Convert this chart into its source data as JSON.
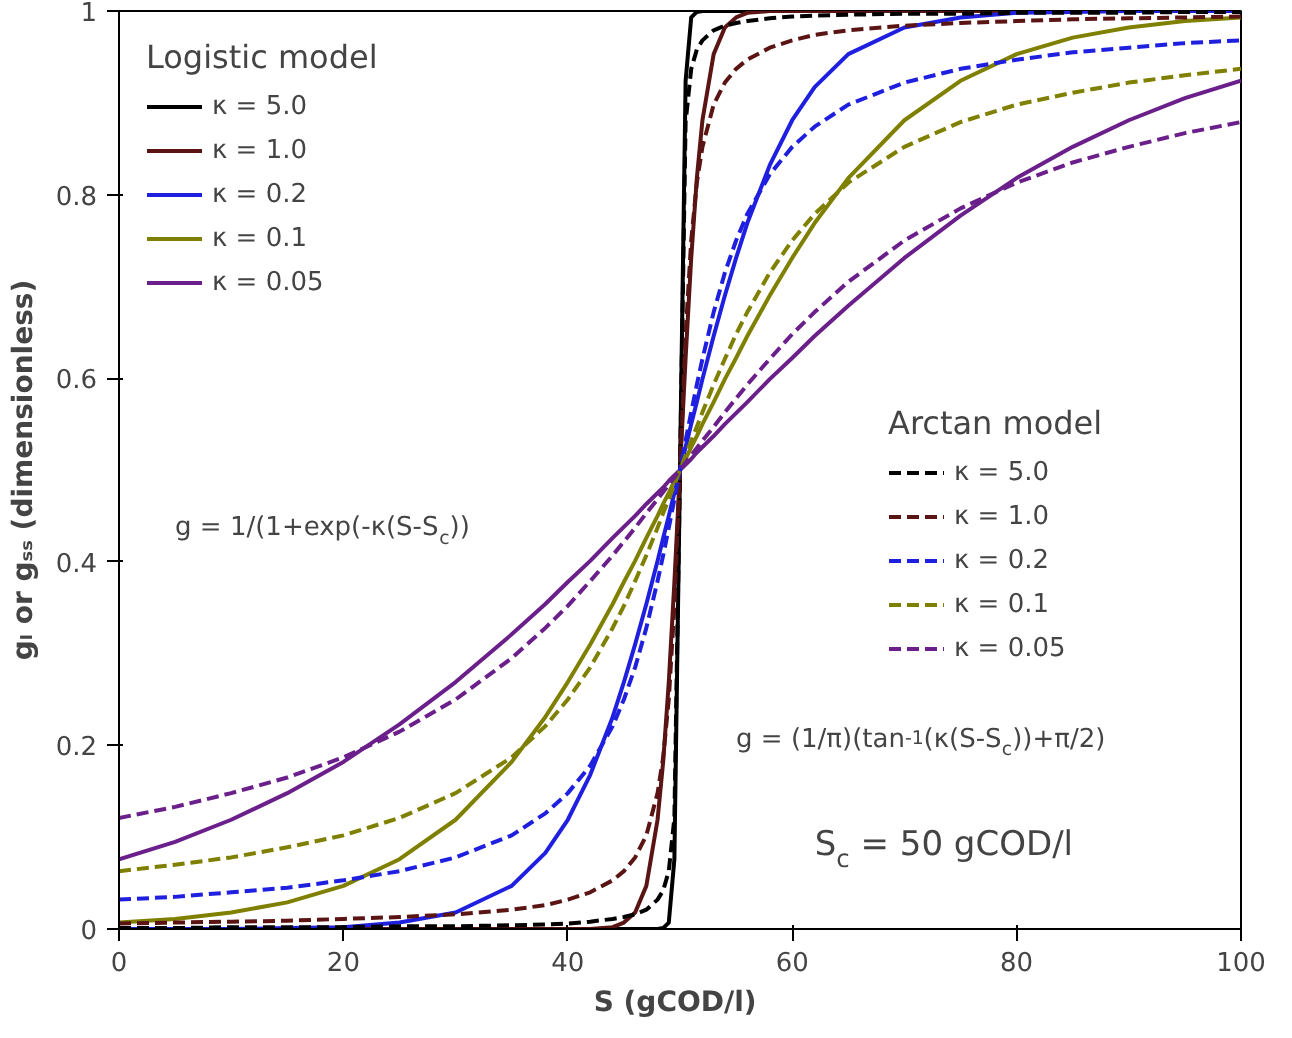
{
  "chart_data": {
    "type": "line",
    "xlabel": "S  (gCOD/l)",
    "ylabel": "gₗ or gₛₛ (dimensionless)",
    "legend_title": "Logistic model",
    "legend": "top left",
    "grid": false,
    "marker": "none",
    "x": [
      0,
      5,
      10,
      15,
      20,
      25,
      30,
      35,
      38,
      40,
      42,
      44,
      45,
      46,
      47,
      48,
      48.5,
      49,
      49.5,
      50,
      50.5,
      51,
      51.5,
      52,
      53,
      54,
      55,
      56,
      58,
      60,
      62,
      65,
      70,
      75,
      80,
      85,
      90,
      95,
      100
    ],
    "xlim": [
      0,
      100
    ],
    "xticks": [
      0,
      20,
      40,
      60,
      80,
      100
    ],
    "ylim": [
      0,
      1
    ],
    "yticks": [
      0,
      0.2,
      0.4,
      0.6,
      0.8,
      1
    ],
    "series": [
      {
        "name": "κ = 5.0",
        "color": "#000000",
        "line_style": "solid",
        "values": [
          0,
          0,
          0,
          0,
          0,
          0,
          0,
          0,
          0,
          0,
          0,
          0,
          0,
          0,
          0,
          0,
          0.001,
          0.007,
          0.076,
          0.5,
          0.924,
          0.993,
          0.999,
          1,
          1,
          1,
          1,
          1,
          1,
          1,
          1,
          1,
          1,
          1,
          1,
          1,
          1,
          1,
          1
        ]
      },
      {
        "name": "κ = 1.0",
        "color": "#5a1414",
        "line_style": "solid",
        "values": [
          0,
          0,
          0,
          0,
          0,
          0,
          0,
          0,
          0,
          0,
          0,
          0.002,
          0.007,
          0.018,
          0.047,
          0.119,
          0.182,
          0.269,
          0.378,
          0.5,
          0.622,
          0.731,
          0.818,
          0.881,
          0.953,
          0.982,
          0.993,
          0.998,
          1,
          1,
          1,
          1,
          1,
          1,
          1,
          1,
          1,
          1,
          1
        ]
      },
      {
        "name": "κ = 0.2",
        "color": "#1f1fe0",
        "line_style": "solid",
        "values": [
          0,
          0,
          0,
          0.001,
          0.002,
          0.007,
          0.018,
          0.047,
          0.083,
          0.119,
          0.168,
          0.231,
          0.269,
          0.31,
          0.354,
          0.401,
          0.426,
          0.45,
          0.475,
          0.5,
          0.525,
          0.55,
          0.574,
          0.599,
          0.646,
          0.69,
          0.731,
          0.769,
          0.832,
          0.881,
          0.917,
          0.953,
          0.982,
          0.993,
          0.998,
          0.999,
          1,
          1,
          1
        ]
      },
      {
        "name": "κ = 0.1",
        "color": "#7f7f00",
        "line_style": "solid",
        "values": [
          0.007,
          0.011,
          0.018,
          0.029,
          0.047,
          0.076,
          0.119,
          0.182,
          0.231,
          0.269,
          0.31,
          0.354,
          0.378,
          0.401,
          0.426,
          0.45,
          0.463,
          0.475,
          0.488,
          0.5,
          0.512,
          0.525,
          0.537,
          0.55,
          0.574,
          0.599,
          0.622,
          0.646,
          0.69,
          0.731,
          0.769,
          0.818,
          0.881,
          0.924,
          0.953,
          0.971,
          0.982,
          0.989,
          0.993
        ]
      },
      {
        "name": "κ = 0.05",
        "color": "#6a1f8a",
        "line_style": "solid",
        "values": [
          0.076,
          0.095,
          0.119,
          0.148,
          0.182,
          0.223,
          0.269,
          0.321,
          0.354,
          0.378,
          0.401,
          0.426,
          0.438,
          0.45,
          0.463,
          0.475,
          0.481,
          0.488,
          0.494,
          0.5,
          0.506,
          0.512,
          0.519,
          0.525,
          0.537,
          0.55,
          0.562,
          0.574,
          0.599,
          0.622,
          0.646,
          0.679,
          0.731,
          0.777,
          0.818,
          0.852,
          0.881,
          0.905,
          0.924
        ]
      },
      {
        "name": "κ = 5.0",
        "color": "#000000",
        "line_style": "dashed",
        "values": [
          0.001,
          0.001,
          0.002,
          0.002,
          0.002,
          0.003,
          0.003,
          0.004,
          0.005,
          0.006,
          0.008,
          0.011,
          0.013,
          0.016,
          0.021,
          0.032,
          0.042,
          0.063,
          0.121,
          0.5,
          0.879,
          0.937,
          0.958,
          0.968,
          0.979,
          0.984,
          0.987,
          0.989,
          0.992,
          0.994,
          0.995,
          0.996,
          0.997,
          0.997,
          0.998,
          0.998,
          0.998,
          0.999,
          0.999
        ]
      },
      {
        "name": "κ = 1.0",
        "color": "#5a1414",
        "line_style": "dashed",
        "values": [
          0.006,
          0.007,
          0.008,
          0.009,
          0.011,
          0.013,
          0.016,
          0.021,
          0.026,
          0.032,
          0.04,
          0.053,
          0.063,
          0.078,
          0.102,
          0.148,
          0.187,
          0.25,
          0.352,
          0.5,
          0.648,
          0.75,
          0.813,
          0.852,
          0.898,
          0.922,
          0.937,
          0.947,
          0.96,
          0.968,
          0.974,
          0.979,
          0.984,
          0.987,
          0.989,
          0.991,
          0.992,
          0.993,
          0.994
        ]
      },
      {
        "name": "κ = 0.2",
        "color": "#1f1fe0",
        "line_style": "dashed",
        "values": [
          0.032,
          0.035,
          0.04,
          0.045,
          0.053,
          0.063,
          0.078,
          0.102,
          0.126,
          0.148,
          0.178,
          0.221,
          0.25,
          0.285,
          0.328,
          0.379,
          0.407,
          0.437,
          0.468,
          0.5,
          0.532,
          0.563,
          0.593,
          0.621,
          0.672,
          0.715,
          0.75,
          0.779,
          0.822,
          0.852,
          0.874,
          0.898,
          0.922,
          0.937,
          0.947,
          0.955,
          0.96,
          0.965,
          0.968
        ]
      },
      {
        "name": "κ = 0.1",
        "color": "#7f7f00",
        "line_style": "dashed",
        "values": [
          0.063,
          0.07,
          0.078,
          0.089,
          0.102,
          0.121,
          0.148,
          0.187,
          0.221,
          0.25,
          0.285,
          0.328,
          0.352,
          0.379,
          0.407,
          0.437,
          0.453,
          0.468,
          0.484,
          0.5,
          0.516,
          0.532,
          0.547,
          0.563,
          0.593,
          0.621,
          0.648,
          0.672,
          0.715,
          0.75,
          0.779,
          0.813,
          0.852,
          0.879,
          0.898,
          0.911,
          0.922,
          0.93,
          0.937
        ]
      },
      {
        "name": "κ = 0.05",
        "color": "#6a1f8a",
        "line_style": "dashed",
        "values": [
          0.121,
          0.133,
          0.148,
          0.165,
          0.187,
          0.215,
          0.25,
          0.295,
          0.328,
          0.352,
          0.379,
          0.407,
          0.422,
          0.437,
          0.453,
          0.468,
          0.476,
          0.484,
          0.492,
          0.5,
          0.508,
          0.516,
          0.524,
          0.532,
          0.547,
          0.563,
          0.578,
          0.593,
          0.621,
          0.648,
          0.672,
          0.705,
          0.75,
          0.785,
          0.813,
          0.835,
          0.852,
          0.867,
          0.879
        ]
      }
    ],
    "annotations": [
      "Arctan model",
      "g = 1/(1+exp(-κ(S-S$_{c}$))",
      "g = (1/π)(tan$^{-1}$(κ(S-S$_{c}$))+π/2)",
      "S$_{c}$ = 50 gCOD/l"
    ]
  }
}
